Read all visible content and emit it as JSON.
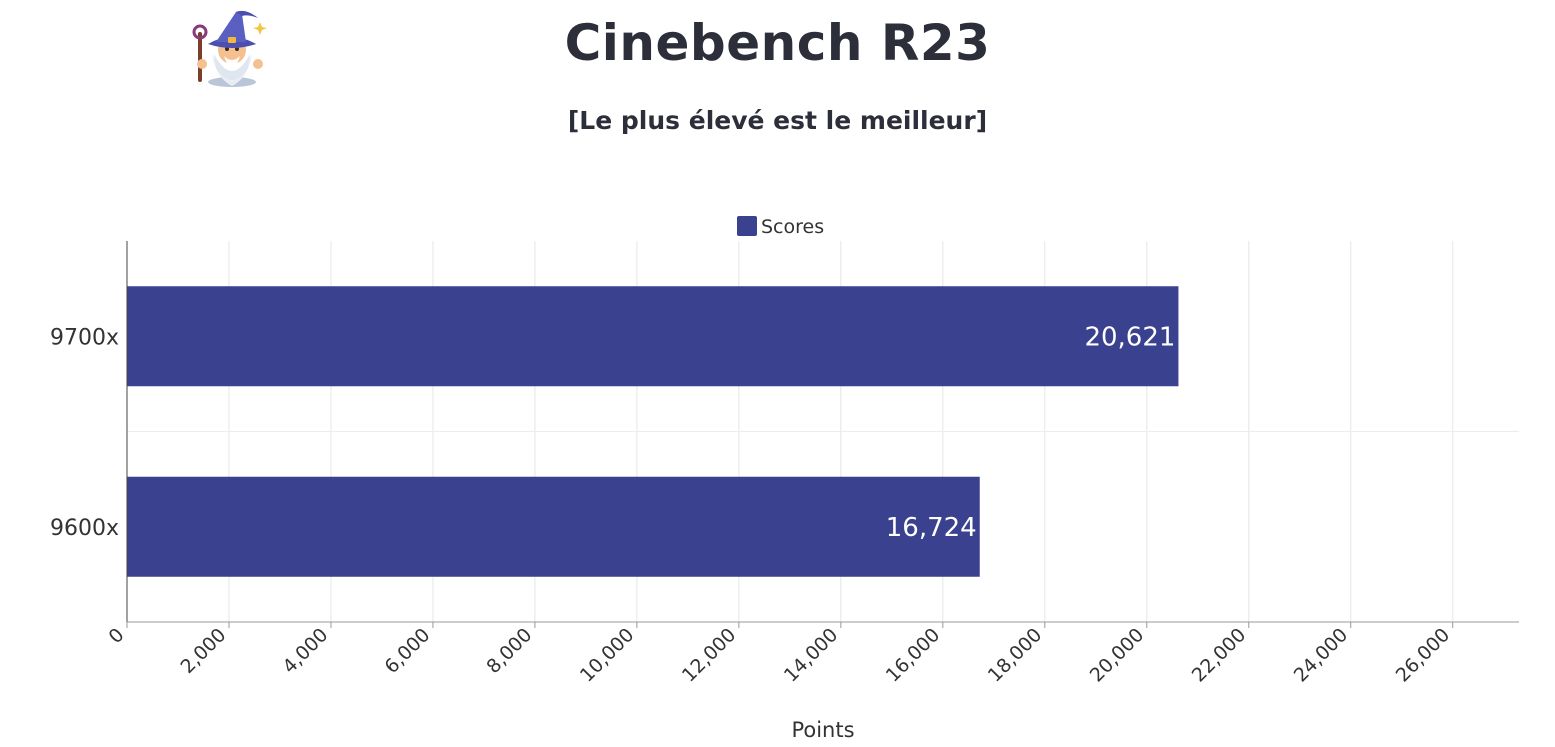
{
  "title": "Cinebench R23",
  "subtitle": "[Le plus élevé est le meilleur]",
  "logo": "wizard-icon",
  "chart_data": {
    "type": "bar",
    "orientation": "horizontal",
    "categories": [
      "9700x",
      "9600x"
    ],
    "series": [
      {
        "name": "Scores",
        "values": [
          20621,
          16724
        ],
        "labels": [
          "20,621",
          "16,724"
        ],
        "color": "#3a418f"
      }
    ],
    "xlabel": "Points",
    "ylabel": "",
    "xlim": [
      0,
      27300
    ],
    "xticks": [
      0,
      2000,
      4000,
      6000,
      8000,
      10000,
      12000,
      14000,
      16000,
      18000,
      20000,
      22000,
      24000,
      26000
    ],
    "xtick_labels": [
      "0",
      "2,000",
      "4,000",
      "6,000",
      "8,000",
      "10,000",
      "12,000",
      "14,000",
      "16,000",
      "18,000",
      "20,000",
      "22,000",
      "24,000",
      "26,000"
    ],
    "grid": true,
    "legend_position": "top-center"
  }
}
